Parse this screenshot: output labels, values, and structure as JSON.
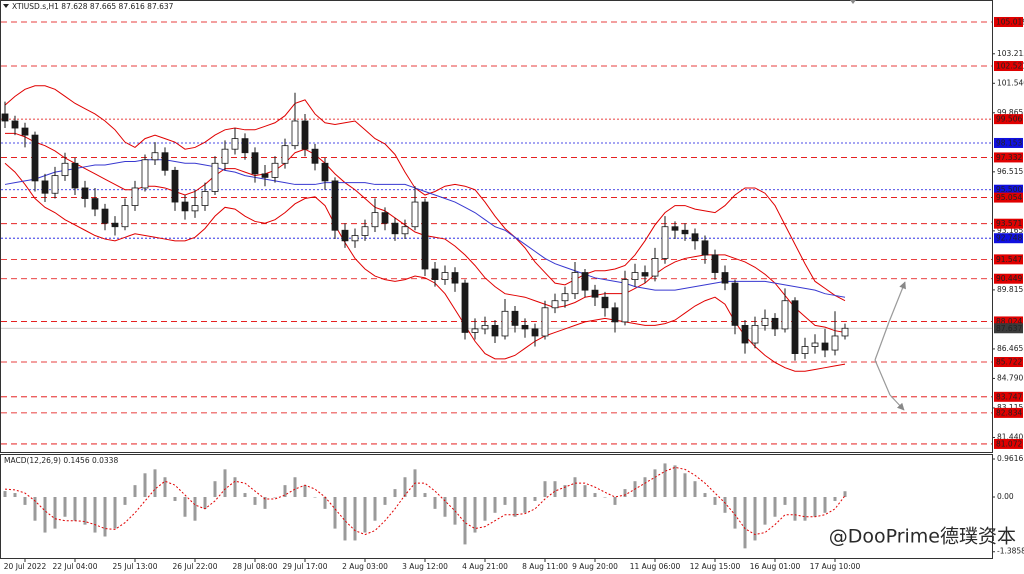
{
  "chart_data": [
    {
      "type": "candlestick",
      "title": "XTIUSD.s,H1  87.628 87.665 87.616 87.637",
      "categories": [
        null,
        null,
        "20 Jul 2022",
        null,
        null,
        null,
        null,
        "22 Jul 04:00",
        null,
        null,
        null,
        null,
        null,
        "25 Jul 13:00",
        null,
        null,
        null,
        null,
        null,
        "26 Jul 22:00",
        null,
        null,
        null,
        null,
        null,
        "28 Jul 08:00",
        null,
        null,
        null,
        null,
        "29 Jul 17:00",
        null,
        null,
        null,
        null,
        null,
        "2 Aug 03:00",
        null,
        null,
        null,
        null,
        null,
        "3 Aug 12:00",
        null,
        null,
        null,
        null,
        null,
        "4 Aug 21:00",
        null,
        null,
        null,
        null,
        null,
        "8 Aug 11:00",
        null,
        null,
        null,
        null,
        "9 Aug 20:00",
        null,
        null,
        null,
        null,
        null,
        "11 Aug 06:00",
        null,
        null,
        null,
        null,
        null,
        "12 Aug 15:00",
        null,
        null,
        null,
        null,
        null,
        "16 Aug 01:00",
        null,
        null,
        null,
        null,
        null,
        "17 Aug 10:00",
        null
      ],
      "open": [
        99.8,
        99.4,
        99.0,
        98.6,
        96.0,
        95.3,
        96.3,
        97.0,
        95.6,
        95.0,
        94.4,
        93.6,
        93.4,
        94.6,
        95.6,
        97.2,
        97.6,
        96.6,
        94.8,
        94.3,
        94.6,
        95.4,
        97.0,
        97.8,
        98.4,
        97.6,
        96.4,
        96.2,
        97.0,
        98.0,
        99.4,
        97.8,
        97.0,
        96.0,
        93.2,
        92.6,
        92.9,
        93.4,
        94.2,
        93.6,
        93.0,
        93.4,
        94.8,
        91.0,
        90.4,
        90.8,
        90.2,
        87.4,
        87.6,
        87.8,
        87.2,
        88.6,
        87.8,
        87.6,
        87.2,
        88.8,
        89.2,
        89.6,
        90.8,
        89.8,
        89.4,
        88.8,
        88.0,
        90.4,
        90.8,
        90.6,
        91.6,
        93.4,
        93.2,
        93.0,
        92.6,
        91.8,
        90.8,
        90.2,
        87.8,
        86.8,
        87.8,
        88.2,
        87.6,
        89.2,
        86.2,
        86.6,
        86.8,
        86.4,
        87.2
      ],
      "high": [
        100.5,
        99.7,
        99.3,
        98.8,
        96.4,
        96.8,
        97.6,
        97.3,
        96.0,
        95.6,
        94.7,
        94.0,
        95.0,
        96.0,
        97.5,
        98.2,
        97.9,
        96.8,
        95.2,
        95.5,
        95.9,
        97.4,
        98.3,
        99.0,
        98.7,
        97.9,
        96.9,
        97.4,
        98.4,
        101.0,
        99.8,
        98.1,
        97.3,
        96.2,
        93.6,
        93.3,
        93.8,
        95.0,
        94.5,
        93.9,
        93.8,
        95.7,
        95.0,
        91.4,
        91.2,
        91.1,
        90.4,
        88.2,
        88.3,
        88.1,
        89.3,
        88.9,
        88.2,
        87.9,
        89.2,
        89.6,
        90.0,
        91.4,
        91.0,
        90.1,
        89.7,
        89.1,
        90.9,
        91.3,
        91.2,
        92.2,
        94.0,
        93.7,
        93.6,
        93.3,
        92.9,
        92.1,
        91.2,
        90.4,
        88.1,
        88.3,
        88.7,
        88.5,
        89.9,
        89.4,
        87.1,
        87.3,
        87.6,
        88.6,
        87.9
      ],
      "low": [
        99.0,
        98.6,
        97.9,
        95.4,
        94.8,
        95.0,
        96.0,
        95.2,
        94.5,
        94.0,
        93.2,
        92.9,
        93.2,
        94.3,
        95.4,
        96.9,
        96.3,
        94.3,
        93.8,
        93.9,
        94.3,
        95.2,
        96.6,
        97.5,
        97.2,
        95.9,
        95.7,
        95.9,
        96.7,
        97.8,
        97.4,
        96.6,
        95.5,
        92.7,
        92.2,
        92.2,
        92.6,
        93.1,
        93.2,
        92.6,
        92.7,
        93.2,
        90.6,
        90.0,
        90.1,
        89.7,
        87.0,
        87.0,
        87.3,
        86.8,
        87.0,
        87.4,
        87.1,
        86.6,
        87.0,
        88.5,
        88.8,
        89.3,
        89.4,
        88.9,
        88.3,
        87.4,
        87.8,
        90.0,
        90.2,
        90.3,
        91.3,
        92.7,
        92.6,
        92.1,
        91.3,
        90.4,
        89.8,
        87.3,
        86.2,
        86.5,
        87.5,
        87.2,
        87.4,
        85.8,
        85.9,
        86.2,
        86.0,
        86.1,
        87.0
      ],
      "close": [
        99.4,
        99.0,
        98.6,
        96.0,
        95.3,
        96.3,
        97.0,
        95.6,
        95.0,
        94.4,
        93.6,
        93.4,
        94.6,
        95.6,
        97.2,
        97.6,
        96.6,
        94.8,
        94.3,
        94.6,
        95.4,
        97.0,
        97.8,
        98.4,
        97.6,
        96.4,
        96.2,
        97.0,
        98.0,
        99.4,
        97.8,
        97.0,
        96.0,
        93.2,
        92.6,
        92.9,
        93.4,
        94.2,
        93.6,
        93.0,
        93.4,
        94.8,
        91.0,
        90.4,
        90.8,
        90.2,
        87.4,
        87.6,
        87.8,
        87.2,
        88.6,
        87.8,
        87.6,
        87.2,
        88.8,
        89.2,
        89.6,
        90.8,
        89.8,
        89.4,
        88.8,
        88.0,
        90.4,
        90.8,
        90.6,
        91.6,
        93.4,
        93.2,
        93.0,
        92.6,
        91.8,
        90.8,
        90.2,
        87.8,
        86.8,
        87.8,
        88.2,
        87.6,
        89.2,
        86.2,
        86.6,
        86.8,
        86.4,
        87.2,
        87.637
      ],
      "up_color": "#ffffff",
      "down_color": "#1a1a1a",
      "wick_color": "#1a1a1a",
      "overlays": [
        {
          "color": "#e00000",
          "style": "solid",
          "values": [
            100.3,
            100.8,
            101.2,
            101.4,
            101.4,
            101.2,
            100.8,
            100.4,
            100.1,
            99.8,
            99.4,
            98.9,
            98.2,
            97.9,
            98.4,
            98.6,
            98.4,
            98.2,
            97.8,
            97.9,
            98.2,
            98.6,
            98.9,
            99.0,
            98.9,
            98.9,
            99.1,
            99.3,
            99.7,
            100.4,
            100.6,
            99.8,
            99.3,
            99.2,
            99.3,
            99.4,
            98.9,
            98.4,
            98.1,
            97.5,
            96.5,
            95.6,
            95.2,
            95.4,
            95.7,
            95.8,
            95.7,
            95.5,
            94.8,
            94.0,
            93.3,
            92.8,
            92.2,
            91.4,
            90.8,
            90.2,
            90.1,
            90.4,
            90.7,
            90.9,
            90.9,
            91.0,
            91.2,
            91.8,
            92.6,
            93.5,
            94.2,
            94.6,
            94.6,
            94.4,
            94.3,
            94.2,
            94.6,
            95.2,
            95.6,
            95.6,
            95.3,
            94.6,
            93.5,
            92.4,
            91.3,
            90.3,
            89.9,
            89.5,
            89.2
          ]
        },
        {
          "color": "#e00000",
          "style": "solid",
          "values": [
            98.7,
            98.7,
            98.5,
            98.2,
            98.0,
            97.7,
            97.3,
            97.0,
            96.7,
            96.4,
            96.1,
            95.8,
            95.5,
            95.5,
            95.7,
            95.7,
            95.6,
            95.4,
            95.2,
            95.4,
            95.8,
            96.3,
            96.7,
            96.7,
            96.5,
            96.3,
            96.4,
            96.6,
            97.0,
            97.6,
            97.8,
            97.5,
            97.0,
            96.4,
            95.9,
            95.5,
            95.0,
            94.5,
            94.3,
            93.9,
            93.5,
            93.1,
            92.9,
            92.8,
            92.7,
            92.3,
            91.8,
            91.2,
            90.5,
            90.0,
            89.6,
            89.5,
            89.4,
            89.2,
            89.0,
            88.8,
            88.9,
            89.1,
            89.4,
            89.5,
            89.6,
            89.6,
            89.6,
            89.9,
            90.2,
            90.7,
            91.1,
            91.4,
            91.6,
            91.7,
            91.8,
            91.8,
            91.8,
            91.6,
            91.4,
            91.1,
            90.7,
            90.2,
            89.5,
            88.8,
            88.3,
            87.8,
            87.7,
            87.5,
            87.4
          ]
        },
        {
          "color": "#e00000",
          "style": "solid",
          "values": [
            97.0,
            96.5,
            95.8,
            95.0,
            94.5,
            94.2,
            93.8,
            93.5,
            93.2,
            92.9,
            92.7,
            92.6,
            92.8,
            93.0,
            92.9,
            92.8,
            92.7,
            92.6,
            92.6,
            92.8,
            93.3,
            94.0,
            94.5,
            94.4,
            94.0,
            93.7,
            93.6,
            93.8,
            94.2,
            94.7,
            95.0,
            95.1,
            94.6,
            93.5,
            92.5,
            91.6,
            91.0,
            90.6,
            90.4,
            90.3,
            90.4,
            90.6,
            90.5,
            90.2,
            89.6,
            88.7,
            87.8,
            86.9,
            86.2,
            85.9,
            85.9,
            86.1,
            86.5,
            86.9,
            87.2,
            87.4,
            87.6,
            87.8,
            88.0,
            88.1,
            88.2,
            88.1,
            88.0,
            87.9,
            87.8,
            87.8,
            87.9,
            88.1,
            88.5,
            88.9,
            89.2,
            89.4,
            89.0,
            88.0,
            87.2,
            86.6,
            86.1,
            85.7,
            85.4,
            85.2,
            85.2,
            85.3,
            85.4,
            85.5,
            85.6
          ]
        },
        {
          "color": "#3838d0",
          "style": "solid",
          "values": [
            95.8,
            95.9,
            96.0,
            96.1,
            96.3,
            96.5,
            96.6,
            96.7,
            96.8,
            96.9,
            96.9,
            97.0,
            97.1,
            97.1,
            97.2,
            97.2,
            97.2,
            97.1,
            97.0,
            97.0,
            96.9,
            96.8,
            96.6,
            96.5,
            96.3,
            96.2,
            96.1,
            96.0,
            95.9,
            95.8,
            95.8,
            95.8,
            95.9,
            95.9,
            95.9,
            95.9,
            95.9,
            95.8,
            95.8,
            95.8,
            95.8,
            95.6,
            95.4,
            95.2,
            95.0,
            94.8,
            94.5,
            94.2,
            93.8,
            93.4,
            93.2,
            92.8,
            92.4,
            92.0,
            91.6,
            91.3,
            91.1,
            90.9,
            90.7,
            90.5,
            90.4,
            90.3,
            90.2,
            90.0,
            89.9,
            89.8,
            89.8,
            89.8,
            89.9,
            90.0,
            90.1,
            90.2,
            90.3,
            90.3,
            90.3,
            90.3,
            90.3,
            90.2,
            90.1,
            90.0,
            89.9,
            89.8,
            89.6,
            89.5,
            89.4
          ]
        }
      ],
      "levels": [
        {
          "value": 105.019,
          "color": "#e00000",
          "style": "dashed"
        },
        {
          "value": 102.521,
          "color": "#e00000",
          "style": "dashed"
        },
        {
          "value": 99.506,
          "color": "#e00000",
          "style": "dotted"
        },
        {
          "value": 98.153,
          "color": "#1010e0",
          "style": "dotted"
        },
        {
          "value": 97.332,
          "color": "#e00000",
          "style": "dashed"
        },
        {
          "value": 95.5,
          "label": "95.500",
          "color": "#1010e0",
          "style": "dotted"
        },
        {
          "value": 95.054,
          "color": "#e00000",
          "style": "dashed"
        },
        {
          "value": 93.571,
          "color": "#e00000",
          "style": "dashed"
        },
        {
          "value": 92.748,
          "color": "#1010e0",
          "style": "dotted"
        },
        {
          "value": 91.547,
          "color": "#e00000",
          "style": "dashed"
        },
        {
          "value": 90.449,
          "color": "#e00000",
          "style": "dashed"
        },
        {
          "value": 88.024,
          "color": "#e00000",
          "style": "dashed"
        },
        {
          "value": 87.637,
          "color": "#3a3a3a",
          "style": "solid"
        },
        {
          "value": 85.722,
          "color": "#e00000",
          "style": "dashed"
        },
        {
          "value": 83.747,
          "color": "#e00000",
          "style": "dashed"
        },
        {
          "value": 82.834,
          "color": "#e00000",
          "style": "dashed"
        },
        {
          "value": 81.072,
          "color": "#e00000",
          "style": "dashed"
        }
      ],
      "ylim": [
        80.615,
        106.267
      ],
      "yticks": [
        103.215,
        {
          "value": 101.54,
          "label": "101.540"
        },
        99.865,
        96.515,
        93.165,
        89.815,
        86.465,
        {
          "value": 84.79,
          "label": "84.790"
        },
        83.115,
        {
          "value": 81.44,
          "label": "81.440"
        }
      ]
    },
    {
      "type": "macd",
      "title": "MACD(12,26,9) 0.1456 0.0338",
      "histogram": {
        "color": "#9a9a9a",
        "values": [
          0.15,
          0.1,
          -0.2,
          -0.6,
          -0.9,
          -0.8,
          -0.5,
          -0.6,
          -0.7,
          -0.9,
          -1.0,
          -0.8,
          -0.2,
          0.3,
          0.6,
          0.7,
          0.5,
          -0.1,
          -0.5,
          -0.6,
          -0.3,
          0.4,
          0.7,
          0.5,
          0.1,
          -0.2,
          -0.3,
          0.0,
          0.3,
          0.5,
          0.3,
          0.0,
          -0.3,
          -0.8,
          -1.1,
          -1.1,
          -0.9,
          -0.6,
          -0.2,
          0.2,
          0.5,
          0.7,
          0.1,
          -0.3,
          -0.5,
          -0.7,
          -1.2,
          -0.9,
          -0.6,
          -0.4,
          -0.2,
          -0.5,
          -0.4,
          -0.1,
          0.4,
          0.4,
          0.3,
          0.5,
          0.3,
          0.1,
          0.0,
          -0.2,
          0.2,
          0.4,
          0.5,
          0.7,
          0.85,
          0.8,
          0.6,
          0.4,
          0.1,
          -0.2,
          -0.4,
          -0.8,
          -1.3,
          -1.1,
          -0.7,
          -0.5,
          -0.2,
          -0.6,
          -0.6,
          -0.5,
          -0.4,
          -0.1,
          0.1456
        ]
      },
      "signal": {
        "color": "#e00000",
        "values": [
          0.2,
          0.18,
          0.1,
          -0.1,
          -0.35,
          -0.55,
          -0.6,
          -0.6,
          -0.62,
          -0.7,
          -0.8,
          -0.82,
          -0.65,
          -0.4,
          -0.1,
          0.2,
          0.4,
          0.3,
          0.05,
          -0.2,
          -0.3,
          -0.1,
          0.2,
          0.4,
          0.35,
          0.15,
          -0.05,
          -0.05,
          0.05,
          0.2,
          0.3,
          0.2,
          0.0,
          -0.3,
          -0.6,
          -0.85,
          -0.95,
          -0.85,
          -0.6,
          -0.3,
          0.05,
          0.35,
          0.35,
          0.15,
          -0.1,
          -0.35,
          -0.65,
          -0.8,
          -0.75,
          -0.6,
          -0.45,
          -0.45,
          -0.42,
          -0.3,
          -0.05,
          0.15,
          0.25,
          0.35,
          0.35,
          0.25,
          0.12,
          0.0,
          0.05,
          0.2,
          0.35,
          0.5,
          0.65,
          0.75,
          0.7,
          0.55,
          0.35,
          0.1,
          -0.15,
          -0.45,
          -0.8,
          -0.95,
          -0.9,
          -0.7,
          -0.45,
          -0.45,
          -0.5,
          -0.5,
          -0.45,
          -0.3,
          0.0338
        ]
      },
      "ylim": [
        -1.544,
        1.063
      ],
      "yticks": [
        0.9616,
        {
          "value": 0,
          "label": "0.00"
        },
        -1.3858
      ]
    }
  ],
  "watermark": "@DooPrime德璞资本"
}
